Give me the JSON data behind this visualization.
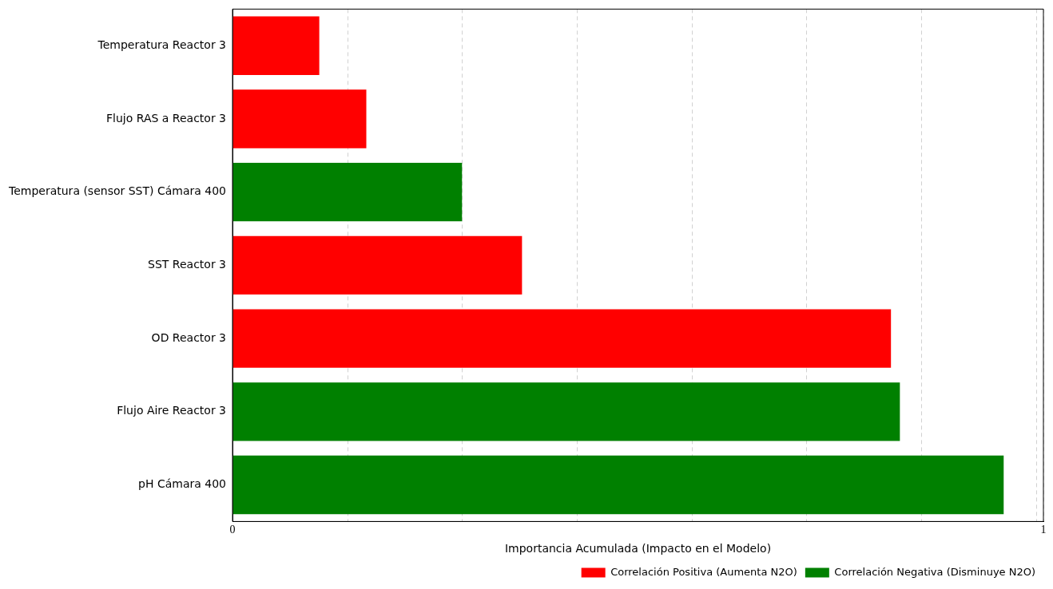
{
  "chart_data": {
    "type": "bar",
    "orientation": "horizontal",
    "stacked": true,
    "categories": [
      "Temperatura Reactor 3",
      "Flujo RAS a Reactor 3",
      "Temperatura (sensor SST) Cámara 400",
      "SST Reactor 3",
      "OD Reactor 3",
      "Flujo Aire Reactor 3",
      "pH Cámara 400"
    ],
    "series": [
      {
        "name": "Correlación Positiva (Aumenta N2O)",
        "color": "#ff0000",
        "values": [
          0.107,
          0.165,
          null,
          0.357,
          0.812,
          null,
          null
        ]
      },
      {
        "name": "Correlación Negativa (Disminuye N2O)",
        "color": "#008000",
        "values": [
          null,
          null,
          0.283,
          null,
          null,
          0.823,
          0.951
        ]
      }
    ],
    "xlabel": "Importancia Acumulada (Impacto en el Modelo)",
    "xlim": [
      0,
      1
    ],
    "xticks": [
      0,
      {
        "value": 0.142,
        "label": null
      },
      {
        "value": 0.283,
        "label": null
      },
      {
        "value": 0.425,
        "label": null
      },
      {
        "value": 0.567,
        "label": null
      },
      {
        "value": 0.708,
        "label": null
      },
      {
        "value": 0.85,
        "label": null
      },
      {
        "value": 0.992,
        "label": null
      },
      1
    ],
    "grid": "x",
    "line_style": "dashed",
    "legend": "bottom right"
  }
}
